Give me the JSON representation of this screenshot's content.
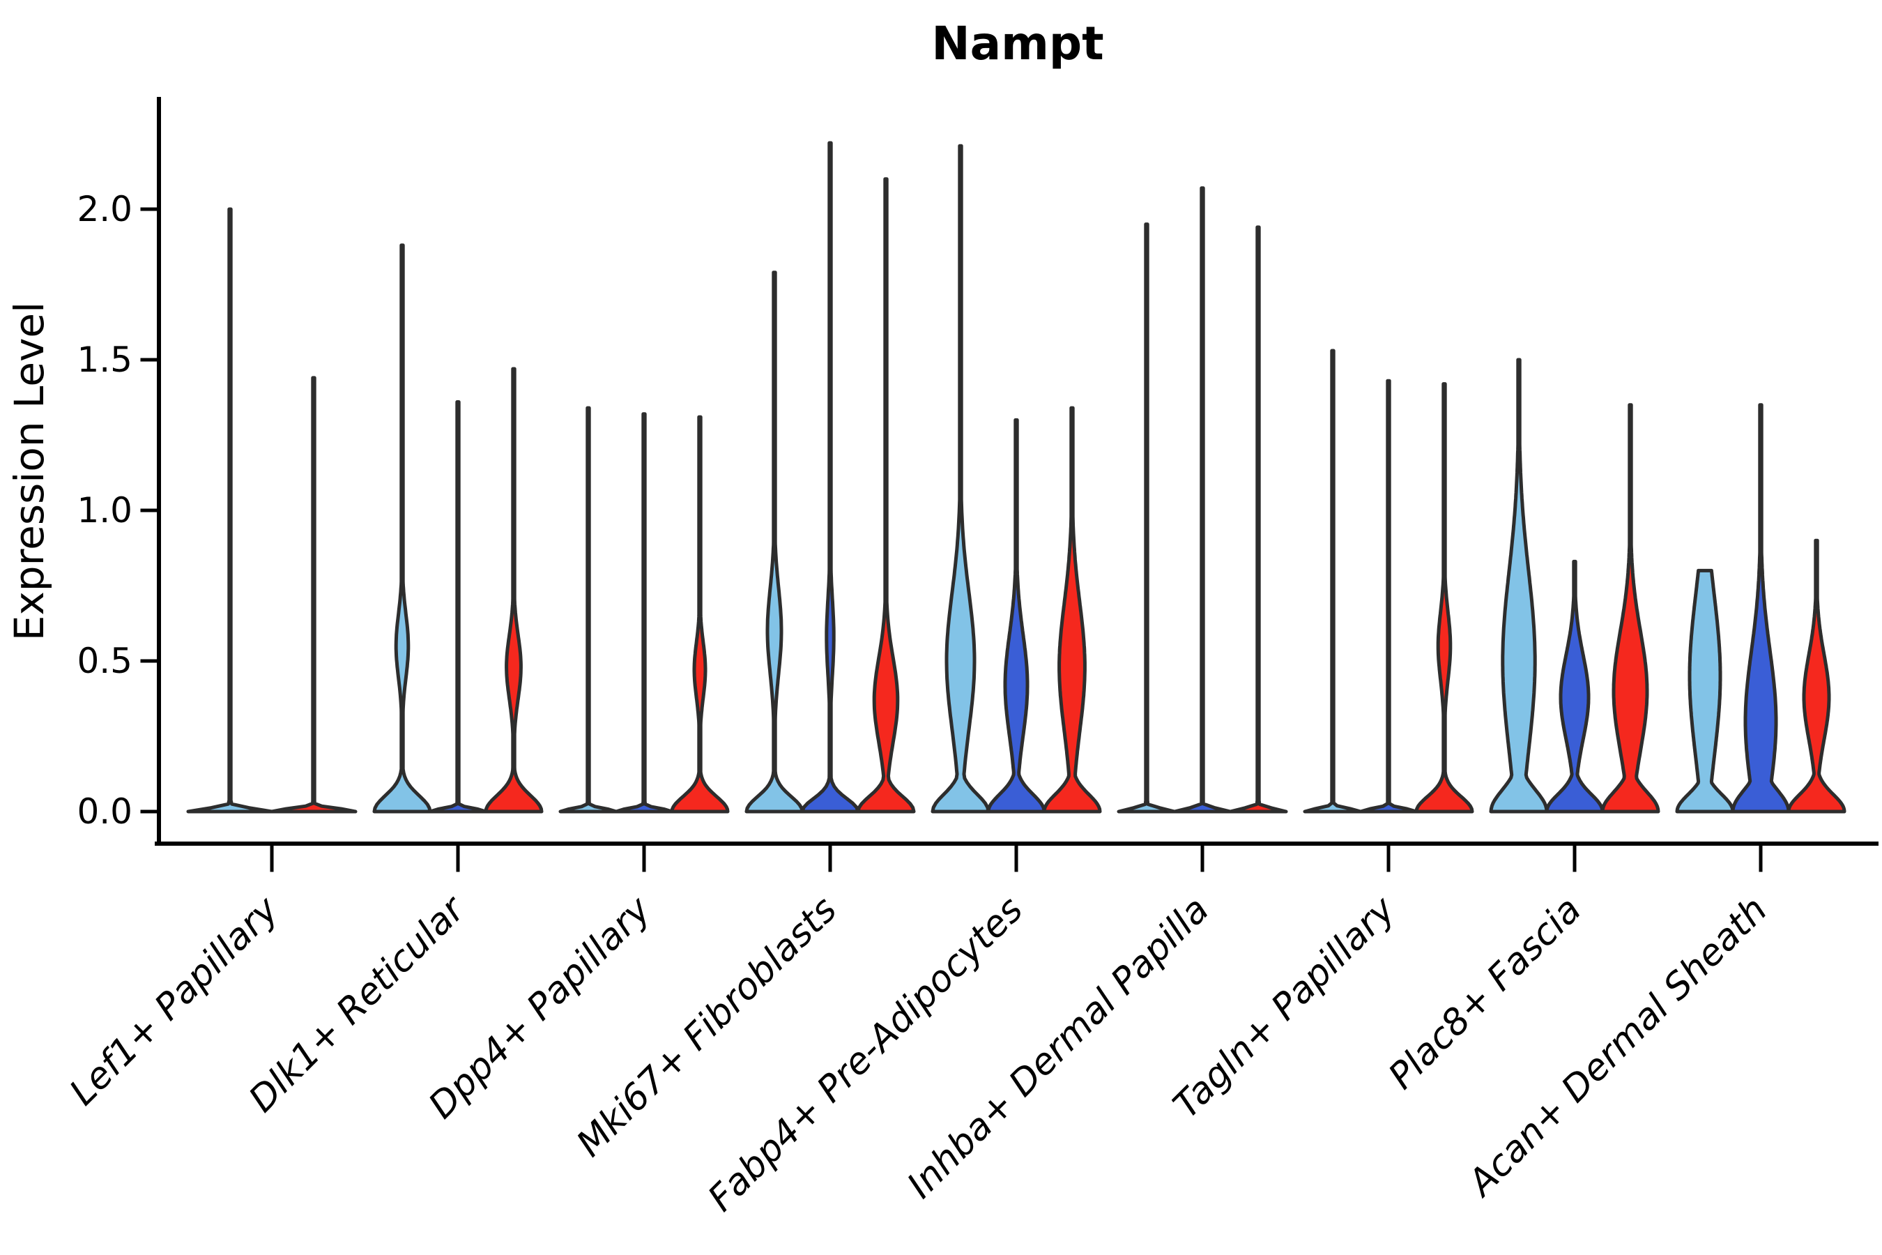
{
  "chart_data": {
    "type": "violin",
    "title": "Nampt",
    "ylabel": "Expression Level",
    "xlabel": "",
    "legend_position": "none",
    "grid": false,
    "ylim": [
      -0.105,
      2.36
    ],
    "ytick_labels": [
      "0.0",
      "0.5",
      "1.0",
      "1.5",
      "2.0"
    ],
    "ytick_values": [
      0.0,
      0.5,
      1.0,
      1.5,
      2.0
    ],
    "categories": [
      "Lef1+ Papillary",
      "Dlk1+ Reticular",
      "Dpp4+ Papillary",
      "Mki67+ Fibroblasts",
      "Fabp4+ Pre-Adipocytes",
      "Inhba+ Dermal Papilla",
      "Tagln+ Papillary",
      "Plac8+ Fascia",
      "Acan+ Dermal Sheath"
    ],
    "colors": {
      "lightblue": "#82C3E7",
      "darkblue": "#3A5ED6",
      "red": "#F5281E",
      "outline": "#2D2D2D",
      "axis": "#000000"
    },
    "groups": [
      {
        "category": "Lef1+ Papillary",
        "violins": [
          {
            "split": "lightblue",
            "max": 2.0,
            "profile": [
              [
                0,
                0.014,
                1
              ]
            ]
          },
          {
            "split": "red",
            "max": 1.44,
            "profile": [
              [
                0,
                0.014,
                1
              ]
            ]
          }
        ]
      },
      {
        "category": "Dlk1+ Reticular",
        "violins": [
          {
            "split": "lightblue",
            "max": 1.88,
            "profile": [
              [
                0,
                0.075,
                1
              ],
              [
                0.55,
                0.15,
                0.22
              ]
            ]
          },
          {
            "split": "darkblue",
            "max": 1.36,
            "profile": [
              [
                0,
                0.014,
                1
              ]
            ]
          },
          {
            "split": "red",
            "max": 1.47,
            "profile": [
              [
                0,
                0.075,
                1
              ],
              [
                0.48,
                0.15,
                0.26
              ]
            ]
          }
        ]
      },
      {
        "category": "Dpp4+ Papillary",
        "violins": [
          {
            "split": "lightblue",
            "max": 1.34,
            "profile": [
              [
                0,
                0.014,
                1
              ]
            ]
          },
          {
            "split": "darkblue",
            "max": 1.32,
            "profile": [
              [
                0,
                0.014,
                1
              ]
            ]
          },
          {
            "split": "red",
            "max": 1.31,
            "profile": [
              [
                0,
                0.07,
                1
              ],
              [
                0.47,
                0.13,
                0.2
              ]
            ]
          }
        ]
      },
      {
        "category": "Mki67+ Fibroblasts",
        "violins": [
          {
            "split": "lightblue",
            "max": 1.79,
            "profile": [
              [
                0,
                0.07,
                1
              ],
              [
                0.6,
                0.2,
                0.25
              ]
            ]
          },
          {
            "split": "darkblue",
            "max": 2.22,
            "profile": [
              [
                0,
                0.06,
                1
              ],
              [
                0.58,
                0.18,
                0.13
              ]
            ]
          },
          {
            "split": "red",
            "max": 2.1,
            "profile": [
              [
                0,
                0.07,
                1
              ],
              [
                0.37,
                0.2,
                0.42
              ]
            ]
          }
        ]
      },
      {
        "category": "Fabp4+ Pre-Adipocytes",
        "violins": [
          {
            "split": "lightblue",
            "max": 2.21,
            "profile": [
              [
                0,
                0.08,
                1
              ],
              [
                0.5,
                0.32,
                0.5
              ]
            ]
          },
          {
            "split": "darkblue",
            "max": 1.3,
            "profile": [
              [
                0,
                0.08,
                1
              ],
              [
                0.42,
                0.24,
                0.4
              ]
            ]
          },
          {
            "split": "red",
            "max": 1.34,
            "profile": [
              [
                0,
                0.08,
                1
              ],
              [
                0.48,
                0.3,
                0.46
              ]
            ]
          }
        ]
      },
      {
        "category": "Inhba+ Dermal Papilla",
        "violins": [
          {
            "split": "lightblue",
            "max": 1.95,
            "profile": [
              [
                0,
                0.014,
                1
              ]
            ]
          },
          {
            "split": "darkblue",
            "max": 2.07,
            "profile": [
              [
                0,
                0.014,
                1
              ]
            ]
          },
          {
            "split": "red",
            "max": 1.94,
            "profile": [
              [
                0,
                0.014,
                1
              ]
            ]
          }
        ]
      },
      {
        "category": "Tagln+ Papillary",
        "violins": [
          {
            "split": "lightblue",
            "max": 1.53,
            "profile": [
              [
                0,
                0.014,
                1
              ]
            ]
          },
          {
            "split": "darkblue",
            "max": 1.43,
            "profile": [
              [
                0,
                0.014,
                1
              ]
            ]
          },
          {
            "split": "red",
            "max": 1.42,
            "profile": [
              [
                0,
                0.07,
                1
              ],
              [
                0.55,
                0.16,
                0.22
              ]
            ]
          }
        ]
      },
      {
        "category": "Plac8+ Fascia",
        "violins": [
          {
            "split": "lightblue",
            "max": 1.5,
            "profile": [
              [
                0,
                0.1,
                1
              ],
              [
                0.5,
                0.42,
                0.58
              ]
            ]
          },
          {
            "split": "darkblue",
            "max": 0.83,
            "profile": [
              [
                0,
                0.08,
                1
              ],
              [
                0.38,
                0.2,
                0.5
              ]
            ]
          },
          {
            "split": "red",
            "max": 1.35,
            "profile": [
              [
                0,
                0.09,
                1
              ],
              [
                0.4,
                0.28,
                0.6
              ]
            ]
          }
        ]
      },
      {
        "category": "Acan+ Dermal Sheath",
        "violins": [
          {
            "split": "lightblue",
            "max": 0.8,
            "profile": [
              [
                0,
                0.08,
                1
              ],
              [
                0.45,
                0.38,
                0.55
              ]
            ]
          },
          {
            "split": "darkblue",
            "max": 1.35,
            "profile": [
              [
                0,
                0.1,
                1
              ],
              [
                0.3,
                0.33,
                0.55
              ]
            ]
          },
          {
            "split": "red",
            "max": 0.9,
            "profile": [
              [
                0,
                0.08,
                1
              ],
              [
                0.38,
                0.2,
                0.45
              ]
            ]
          }
        ]
      }
    ]
  }
}
